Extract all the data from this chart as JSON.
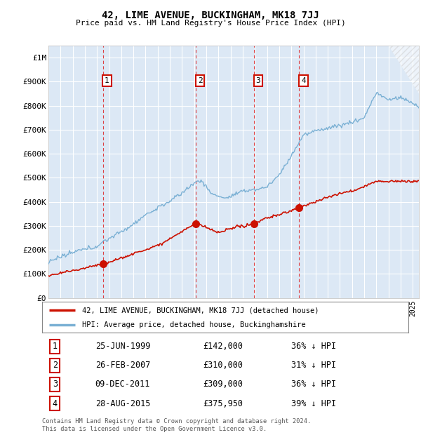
{
  "title": "42, LIME AVENUE, BUCKINGHAM, MK18 7JJ",
  "subtitle": "Price paid vs. HM Land Registry's House Price Index (HPI)",
  "background_color": "#ffffff",
  "plot_bg_color": "#dce8f5",
  "grid_color": "#ffffff",
  "ylim": [
    0,
    1050000
  ],
  "yticks": [
    0,
    100000,
    200000,
    300000,
    400000,
    500000,
    600000,
    700000,
    800000,
    900000,
    1000000
  ],
  "ytick_labels": [
    "£0",
    "£100K",
    "£200K",
    "£300K",
    "£400K",
    "£500K",
    "£600K",
    "£700K",
    "£800K",
    "£900K",
    "£1M"
  ],
  "hpi_color": "#7ab0d4",
  "price_color": "#cc1100",
  "sale_marker_color": "#cc1100",
  "dashed_line_color": "#dd2222",
  "legend_label_price": "42, LIME AVENUE, BUCKINGHAM, MK18 7JJ (detached house)",
  "legend_label_hpi": "HPI: Average price, detached house, Buckinghamshire",
  "sales": [
    {
      "num": 1,
      "date_label": "25-JUN-1999",
      "x": 1999.48,
      "price": 142000,
      "pct": "36%",
      "dir": "↓"
    },
    {
      "num": 2,
      "date_label": "26-FEB-2007",
      "x": 2007.15,
      "price": 310000,
      "pct": "31%",
      "dir": "↓"
    },
    {
      "num": 3,
      "date_label": "09-DEC-2011",
      "x": 2011.93,
      "price": 309000,
      "pct": "36%",
      "dir": "↓"
    },
    {
      "num": 4,
      "date_label": "28-AUG-2015",
      "x": 2015.65,
      "price": 375950,
      "pct": "39%",
      "dir": "↓"
    }
  ],
  "table_rows": [
    {
      "num": 1,
      "date": "25-JUN-1999",
      "price": "£142,000",
      "pct": "36% ↓ HPI"
    },
    {
      "num": 2,
      "date": "26-FEB-2007",
      "price": "£310,000",
      "pct": "31% ↓ HPI"
    },
    {
      "num": 3,
      "date": "09-DEC-2011",
      "price": "£309,000",
      "pct": "36% ↓ HPI"
    },
    {
      "num": 4,
      "date": "28-AUG-2015",
      "price": "£375,950",
      "pct": "39% ↓ HPI"
    }
  ],
  "footer": "Contains HM Land Registry data © Crown copyright and database right 2024.\nThis data is licensed under the Open Government Licence v3.0.",
  "xmin": 1995.0,
  "xmax": 2025.5
}
